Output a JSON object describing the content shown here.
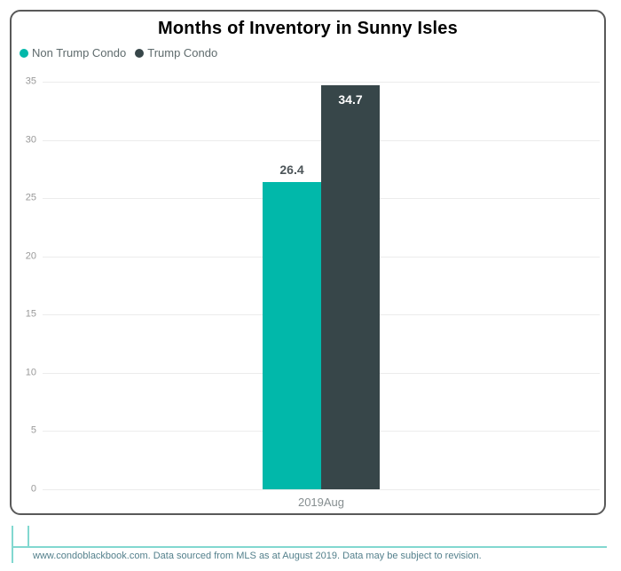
{
  "chart_data": {
    "type": "bar",
    "title": "Months of Inventory in Sunny Isles",
    "categories": [
      "2019Aug"
    ],
    "series": [
      {
        "name": "Non Trump Condo",
        "color": "#01B8AA",
        "values": [
          26.4
        ],
        "label": "26.4"
      },
      {
        "name": "Trump Condo",
        "color": "#374649",
        "values": [
          34.7
        ],
        "label": "34.7"
      }
    ],
    "xlabel": "",
    "ylabel": "",
    "ylim": [
      0,
      35
    ],
    "yticks": [
      0,
      5,
      10,
      15,
      20,
      25,
      30,
      35
    ],
    "grid": true,
    "legend_position": "top-left",
    "value_label_color_outside": "#4d5559",
    "value_label_color_inside": "#ffffff"
  },
  "footer": {
    "text": "www.condoblackbook.com. Data sourced from MLS as at August 2019. Data may be subject to revision.",
    "accent_color": "#82d8d0"
  },
  "card": {
    "border_color": "#595959"
  }
}
